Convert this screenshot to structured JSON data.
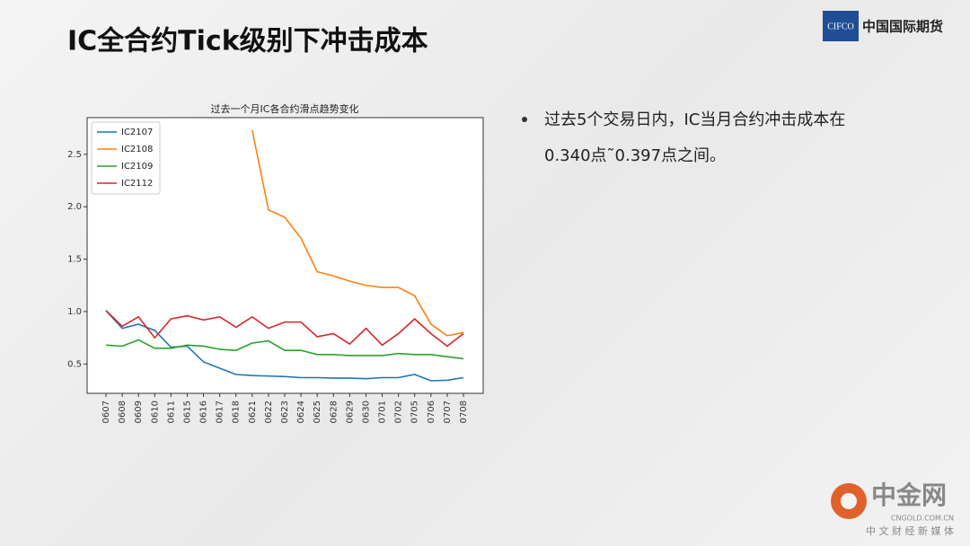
{
  "header": {
    "title": "IC全合约Tick级别下冲击成本",
    "logo_mark": "CIFCO",
    "logo_text": "中国国际期货"
  },
  "bullet": {
    "lines": [
      "过去5个交易日内，IC当月合约冲击成本在",
      "0.340点˜0.397点之间。"
    ]
  },
  "watermark": {
    "name": "中金网",
    "url": "CNGOLD.COM.CN",
    "slogan": "中 文 财 经 新 媒 体"
  },
  "chart_data": {
    "type": "line",
    "title": "过去一个月IC各合约滑点趋势变化",
    "categories": [
      "0607",
      "0608",
      "0609",
      "0610",
      "0611",
      "0615",
      "0616",
      "0617",
      "0618",
      "0621",
      "0622",
      "0623",
      "0624",
      "0625",
      "0628",
      "0629",
      "0630",
      "0701",
      "0702",
      "0705",
      "0706",
      "0707",
      "0708"
    ],
    "series": [
      {
        "name": "IC2107",
        "color": "#1f77b4",
        "values": [
          1.01,
          0.84,
          0.88,
          0.82,
          0.66,
          0.67,
          0.52,
          0.46,
          0.4,
          0.39,
          0.385,
          0.38,
          0.37,
          0.37,
          0.365,
          0.365,
          0.36,
          0.37,
          0.37,
          0.4,
          0.34,
          0.345,
          0.37
        ]
      },
      {
        "name": "IC2108",
        "color": "#ff7f0e",
        "values": [
          null,
          null,
          null,
          null,
          null,
          null,
          null,
          null,
          null,
          2.73,
          1.97,
          1.9,
          1.7,
          1.38,
          1.34,
          1.29,
          1.25,
          1.23,
          1.23,
          1.15,
          0.88,
          0.77,
          0.8
        ]
      },
      {
        "name": "IC2109",
        "color": "#2ca02c",
        "values": [
          0.68,
          0.67,
          0.73,
          0.65,
          0.65,
          0.68,
          0.67,
          0.64,
          0.63,
          0.7,
          0.72,
          0.63,
          0.63,
          0.59,
          0.59,
          0.58,
          0.58,
          0.58,
          0.6,
          0.59,
          0.59,
          0.57,
          0.55
        ]
      },
      {
        "name": "IC2112",
        "color": "#d62728",
        "values": [
          1.01,
          0.86,
          0.95,
          0.75,
          0.93,
          0.96,
          0.92,
          0.95,
          0.85,
          0.95,
          0.84,
          0.9,
          0.9,
          0.76,
          0.79,
          0.69,
          0.84,
          0.68,
          0.79,
          0.93,
          0.79,
          0.67,
          0.79
        ]
      }
    ],
    "ylim": [
      0.22,
      2.85
    ],
    "yticks": [
      0.5,
      {
        "value": 1,
        "label": "1.0"
      },
      1.5,
      {
        "value": 2,
        "label": "2.0"
      },
      2.5
    ],
    "legend": "upper-left"
  }
}
